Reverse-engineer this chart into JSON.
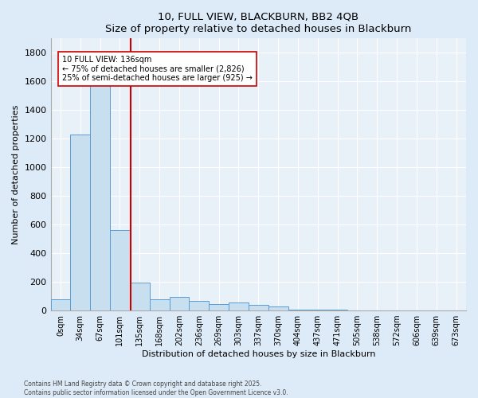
{
  "title": "10, FULL VIEW, BLACKBURN, BB2 4QB",
  "subtitle": "Size of property relative to detached houses in Blackburn",
  "xlabel": "Distribution of detached houses by size in Blackburn",
  "ylabel": "Number of detached properties",
  "bar_color": "#c8dff0",
  "bar_edge_color": "#5b9bd5",
  "vline_color": "#cc0000",
  "vline_x": 3.53,
  "background_color": "#e8f0f8",
  "grid_color": "#ffffff",
  "categories": [
    "0sqm",
    "34sqm",
    "67sqm",
    "101sqm",
    "135sqm",
    "168sqm",
    "202sqm",
    "236sqm",
    "269sqm",
    "303sqm",
    "337sqm",
    "370sqm",
    "404sqm",
    "437sqm",
    "471sqm",
    "505sqm",
    "538sqm",
    "572sqm",
    "606sqm",
    "639sqm",
    "673sqm"
  ],
  "values": [
    80,
    1230,
    1670,
    560,
    195,
    80,
    95,
    65,
    45,
    55,
    40,
    30,
    8,
    4,
    4,
    0,
    0,
    0,
    0,
    0,
    0
  ],
  "ylim": [
    0,
    1900
  ],
  "yticks": [
    0,
    200,
    400,
    600,
    800,
    1000,
    1200,
    1400,
    1600,
    1800
  ],
  "annotation_title": "10 FULL VIEW: 136sqm",
  "annotation_line1": "← 75% of detached houses are smaller (2,826)",
  "annotation_line2": "25% of semi-detached houses are larger (925) →",
  "footer_line1": "Contains HM Land Registry data © Crown copyright and database right 2025.",
  "footer_line2": "Contains public sector information licensed under the Open Government Licence v3.0.",
  "fig_width": 6.0,
  "fig_height": 5.0,
  "fig_dpi": 100
}
